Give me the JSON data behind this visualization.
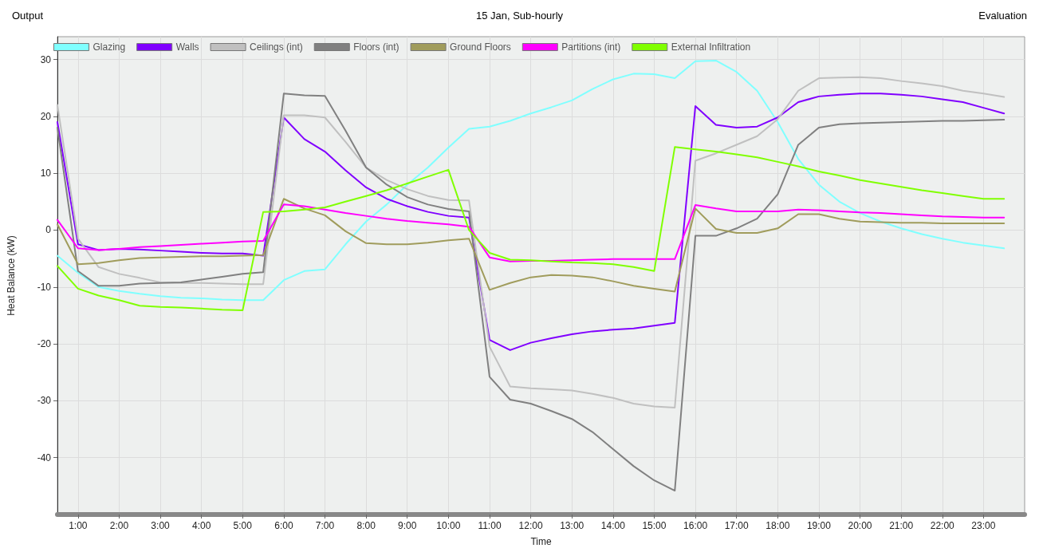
{
  "chart_data": {
    "type": "line",
    "title": "Output",
    "subtitle": "15 Jan, Sub-hourly",
    "annotations": [
      "Evaluation"
    ],
    "xlabel": "Time",
    "ylabel": "Heat Balance (kW)",
    "x": [
      0.5,
      1,
      1.5,
      2,
      2.5,
      3,
      3.5,
      4,
      4.5,
      5,
      5.5,
      6,
      6.5,
      7,
      7.5,
      8,
      8.5,
      9,
      9.5,
      10,
      10.5,
      11,
      11.5,
      12,
      12.5,
      13,
      13.5,
      14,
      14.5,
      15,
      15.5,
      16,
      16.5,
      17,
      17.5,
      18,
      18.5,
      19,
      19.5,
      20,
      20.5,
      21,
      21.5,
      22,
      22.5,
      23,
      23.5
    ],
    "xlim": [
      0.5,
      24
    ],
    "xticks": [
      {
        "value": 1,
        "label": "1:00"
      },
      {
        "value": 2,
        "label": "2:00"
      },
      {
        "value": 3,
        "label": "3:00"
      },
      {
        "value": 4,
        "label": "4:00"
      },
      {
        "value": 5,
        "label": "5:00"
      },
      {
        "value": 6,
        "label": "6:00"
      },
      {
        "value": 7,
        "label": "7:00"
      },
      {
        "value": 8,
        "label": "8:00"
      },
      {
        "value": 9,
        "label": "9:00"
      },
      {
        "value": 10,
        "label": "10:00"
      },
      {
        "value": 11,
        "label": "11:00"
      },
      {
        "value": 12,
        "label": "12:00"
      },
      {
        "value": 13,
        "label": "13:00"
      },
      {
        "value": 14,
        "label": "14:00"
      },
      {
        "value": 15,
        "label": "15:00"
      },
      {
        "value": 16,
        "label": "16:00"
      },
      {
        "value": 17,
        "label": "17:00"
      },
      {
        "value": 18,
        "label": "18:00"
      },
      {
        "value": 19,
        "label": "19:00"
      },
      {
        "value": 20,
        "label": "20:00"
      },
      {
        "value": 21,
        "label": "21:00"
      },
      {
        "value": 22,
        "label": "22:00"
      },
      {
        "value": 23,
        "label": "23:00"
      }
    ],
    "ylim": [
      -50,
      34
    ],
    "yticks": [
      -40,
      -30,
      -20,
      -10,
      0,
      10,
      20,
      30
    ],
    "grid": true,
    "legend": "top",
    "marker": "none",
    "line_style": "solid",
    "series": [
      {
        "name": "Glazing",
        "color": "#80ffff",
        "values": [
          -4.5,
          -7.5,
          -10,
          -10.7,
          -11.2,
          -11.6,
          -11.9,
          -12,
          -12.2,
          -12.3,
          -12.3,
          -8.8,
          -7.2,
          -6.9,
          -2.5,
          1.5,
          4.5,
          8,
          11,
          14.5,
          17.8,
          18.2,
          19.2,
          20.5,
          21.6,
          22.8,
          24.8,
          26.5,
          27.5,
          27.4,
          26.7,
          29.7,
          29.8,
          27.8,
          24.5,
          19,
          12.5,
          8,
          5,
          3,
          1.5,
          0.3,
          -0.7,
          -1.5,
          -2.2,
          -2.7,
          -3.2
        ]
      },
      {
        "name": "Walls",
        "color": "#8000ff",
        "values": [
          19,
          -2.5,
          -3.5,
          -3.3,
          -3.4,
          -3.6,
          -3.8,
          -4,
          -4.1,
          -4.1,
          -4.5,
          19.8,
          16,
          13.8,
          10.5,
          7.5,
          5.5,
          4.2,
          3.2,
          2.5,
          2.2,
          -19.3,
          -21.1,
          -19.8,
          -19,
          -18.3,
          -17.8,
          -17.5,
          -17.3,
          -16.8,
          -16.3,
          21.8,
          18.5,
          18,
          18.2,
          19.8,
          22.5,
          23.5,
          23.8,
          24,
          24,
          23.8,
          23.5,
          23,
          22.5,
          21.5,
          20.5
        ]
      },
      {
        "name": "Ceilings (int)",
        "color": "#c0c0c0",
        "values": [
          22,
          -1.5,
          -6.5,
          -7.7,
          -8.4,
          -9.2,
          -9.3,
          -9.3,
          -9.4,
          -9.5,
          -9.5,
          20.2,
          20.2,
          19.8,
          15.5,
          11,
          8.8,
          7.2,
          6,
          5.3,
          5.2,
          -20.5,
          -27.5,
          -27.8,
          -28,
          -28.2,
          -28.8,
          -29.5,
          -30.5,
          -31,
          -31.2,
          12.2,
          13.5,
          15,
          16.5,
          19.5,
          24.5,
          26.7,
          26.8,
          26.9,
          26.7,
          26.2,
          25.8,
          25.3,
          24.5,
          24,
          23.4
        ]
      },
      {
        "name": "Floors (int)",
        "color": "#808080",
        "values": [
          18,
          -7.2,
          -9.8,
          -9.8,
          -9.4,
          -9.3,
          -9.2,
          -8.7,
          -8.2,
          -7.7,
          -7.4,
          24,
          23.7,
          23.6,
          17.5,
          11,
          8,
          5.8,
          4.5,
          3.7,
          3.3,
          -25.8,
          -29.8,
          -30.5,
          -31.8,
          -33.2,
          -35.5,
          -38.5,
          -41.5,
          -44,
          -45.8,
          -1,
          -1,
          0.3,
          2,
          6.3,
          15,
          18,
          18.6,
          18.8,
          18.9,
          19,
          19.1,
          19.2,
          19.2,
          19.3,
          19.4
        ]
      },
      {
        "name": "Ground Floors",
        "color": "#a09c5c",
        "values": [
          1,
          -6,
          -5.8,
          -5.3,
          -4.9,
          -4.8,
          -4.7,
          -4.6,
          -4.6,
          -4.5,
          -4.4,
          5.5,
          3.8,
          2.6,
          -0.2,
          -2.3,
          -2.5,
          -2.5,
          -2.2,
          -1.8,
          -1.5,
          -10.5,
          -9.3,
          -8.3,
          -7.9,
          -8,
          -8.3,
          -9,
          -9.8,
          -10.3,
          -10.8,
          3.8,
          0.2,
          -0.5,
          -0.5,
          0.3,
          2.8,
          2.8,
          2,
          1.5,
          1.4,
          1.3,
          1.3,
          1.2,
          1.2,
          1.2,
          1.2
        ]
      },
      {
        "name": "Partitions (int)",
        "color": "#ff00ff",
        "values": [
          1.8,
          -3.2,
          -3.5,
          -3.3,
          -3,
          -2.8,
          -2.6,
          -2.4,
          -2.2,
          -2,
          -1.9,
          4.5,
          4.2,
          3.6,
          3,
          2.5,
          2,
          1.6,
          1.3,
          1,
          0.6,
          -4.8,
          -5.5,
          -5.4,
          -5.4,
          -5.3,
          -5.2,
          -5.1,
          -5.1,
          -5.1,
          -5.1,
          4.4,
          3.8,
          3.3,
          3.3,
          3.3,
          3.6,
          3.5,
          3.3,
          3.1,
          3,
          2.8,
          2.6,
          2.4,
          2.3,
          2.2,
          2.2
        ]
      },
      {
        "name": "External Infiltration",
        "color": "#80ff00",
        "values": [
          -6.3,
          -10.3,
          -11.5,
          -12.3,
          -13.3,
          -13.5,
          -13.6,
          -13.8,
          -14,
          -14.1,
          3.2,
          3.3,
          3.6,
          4,
          5,
          6,
          7,
          8.2,
          9.4,
          10.6,
          0,
          -4,
          -5.2,
          -5.3,
          -5.5,
          -5.7,
          -5.8,
          -6,
          -6.5,
          -7.2,
          14.6,
          14.2,
          13.8,
          13.3,
          12.8,
          12,
          11.2,
          10.3,
          9.6,
          8.8,
          8.2,
          7.6,
          7,
          6.5,
          6,
          5.5,
          5.5
        ]
      }
    ]
  }
}
